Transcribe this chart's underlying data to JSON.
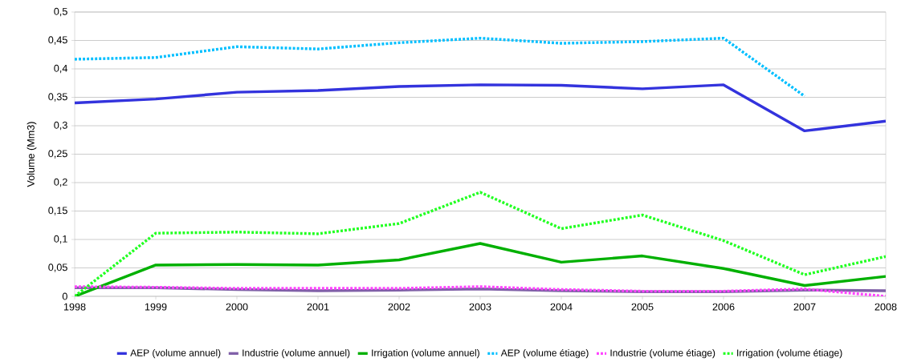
{
  "chart_data": {
    "type": "line",
    "ylabel": "Volume (Mm3)",
    "x": [
      1998,
      1999,
      2000,
      2001,
      2002,
      2003,
      2004,
      2005,
      2006,
      2007,
      2008
    ],
    "xlim": [
      1998,
      2008
    ],
    "xticks": [
      1998,
      1999,
      2000,
      2001,
      2002,
      2003,
      2004,
      2005,
      2006,
      2007,
      2008
    ],
    "ylim": [
      0,
      0.5
    ],
    "yticks": [
      0,
      {
        "value": 0.05,
        "label": "0,05"
      },
      {
        "value": 0.1,
        "label": "0,1"
      },
      {
        "value": 0.15,
        "label": "0,15"
      },
      {
        "value": 0.2,
        "label": "0,2"
      },
      {
        "value": 0.25,
        "label": "0,25"
      },
      {
        "value": 0.3,
        "label": "0,3"
      },
      {
        "value": 0.35,
        "label": "0,35"
      },
      {
        "value": 0.4,
        "label": "0,4"
      },
      {
        "value": 0.45,
        "label": "0,45"
      },
      {
        "value": 0.5,
        "label": "0,5"
      }
    ],
    "grid": "y",
    "legend": "bottom",
    "series": [
      {
        "name": "AEP (volume annuel)",
        "color": "#3333dd",
        "line_style": "solid",
        "values": [
          0.34,
          0.347,
          0.359,
          0.362,
          0.369,
          0.372,
          0.371,
          0.365,
          0.372,
          0.291,
          0.308
        ]
      },
      {
        "name": "Industrie (volume annuel)",
        "color": "#8060a8",
        "line_style": "solid",
        "values": [
          0.015,
          0.015,
          0.012,
          0.01,
          0.011,
          0.013,
          0.01,
          0.008,
          0.008,
          0.011,
          0.01
        ]
      },
      {
        "name": "Irrigation (volume annuel)",
        "color": "#00b000",
        "line_style": "solid",
        "values": [
          0,
          0.055,
          0.056,
          0.055,
          0.064,
          0.093,
          0.06,
          0.071,
          0.049,
          0.019,
          0.035
        ]
      },
      {
        "name": "AEP (volume étiage)",
        "color": "#00bfff",
        "line_style": "dotted",
        "values": [
          0.417,
          0.42,
          0.439,
          0.435,
          0.446,
          0.454,
          0.445,
          0.448,
          0.454,
          0.352,
          null
        ]
      },
      {
        "name": "Industrie (volume étiage)",
        "color": "#ff44ff",
        "line_style": "dotted",
        "values": [
          0.017,
          0.016,
          0.014,
          0.014,
          0.014,
          0.017,
          0.012,
          0.009,
          0.009,
          0.013,
          0.0
        ]
      },
      {
        "name": "Irrigation (volume étiage)",
        "color": "#22ff22",
        "line_style": "dotted",
        "values": [
          0,
          0.111,
          0.113,
          0.11,
          0.128,
          0.183,
          0.119,
          0.143,
          0.098,
          0.038,
          0.07
        ]
      }
    ]
  }
}
